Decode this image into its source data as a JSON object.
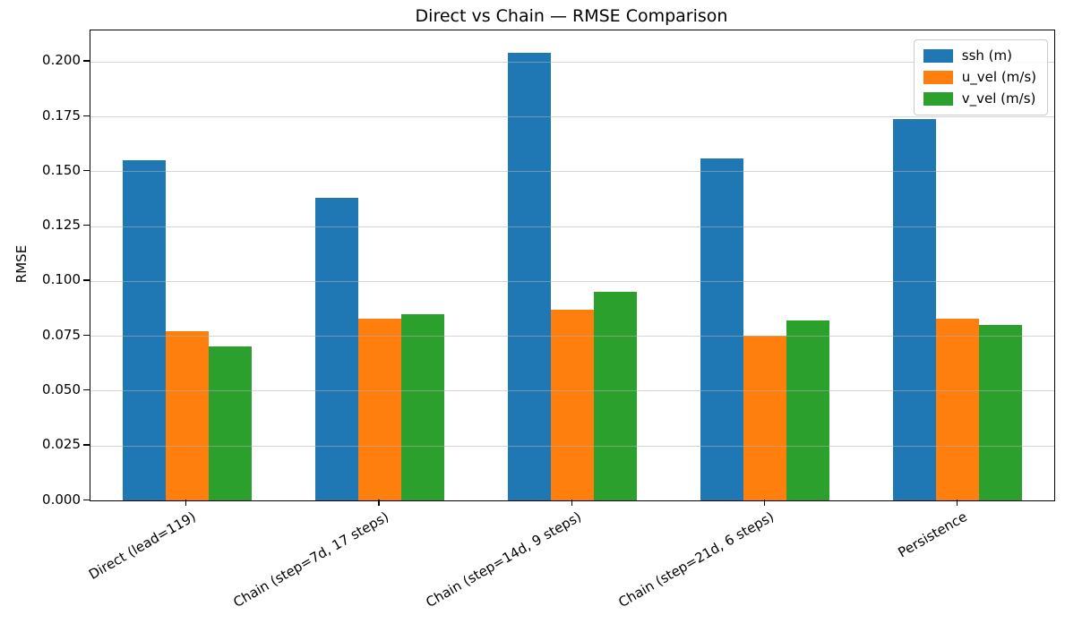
{
  "chart_data": {
    "type": "bar",
    "title": "Direct vs Chain — RMSE Comparison",
    "xlabel": "",
    "ylabel": "RMSE",
    "categories": [
      "Direct (lead=119)",
      "Chain (step=7d, 17 steps)",
      "Chain (step=14d, 9 steps)",
      "Chain (step=21d, 6 steps)",
      "Persistence"
    ],
    "series": [
      {
        "name": "ssh (m)",
        "color": "#1f77b4",
        "values": [
          0.155,
          0.138,
          0.204,
          0.156,
          0.174
        ]
      },
      {
        "name": "u_vel (m/s)",
        "color": "#ff7f0e",
        "values": [
          0.077,
          0.083,
          0.087,
          0.075,
          0.083
        ]
      },
      {
        "name": "v_vel (m/s)",
        "color": "#2ca02c",
        "values": [
          0.07,
          0.085,
          0.095,
          0.082,
          0.08
        ]
      }
    ],
    "ylim": [
      0,
      0.2142
    ],
    "yticks": [
      0.0,
      0.025,
      0.05,
      0.075,
      0.1,
      0.125,
      0.15,
      0.175,
      0.2
    ],
    "ytick_labels": [
      "0.000",
      "0.025",
      "0.050",
      "0.075",
      "0.100",
      "0.125",
      "0.150",
      "0.175",
      "0.200"
    ],
    "grid": "horizontal",
    "grid_over_bars": true,
    "legend_position": "upper right",
    "x_tick_rotation": 30
  }
}
